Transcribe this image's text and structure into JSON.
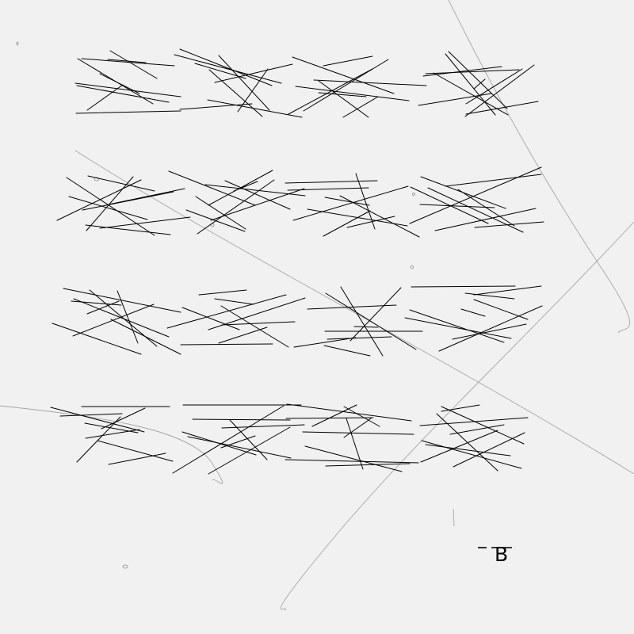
{
  "answer_mark": {
    "letter": "B"
  },
  "colors": {
    "background": "#f1f1f1",
    "strokes": "#000000",
    "faint_arcs": "#9a9a9a"
  }
}
